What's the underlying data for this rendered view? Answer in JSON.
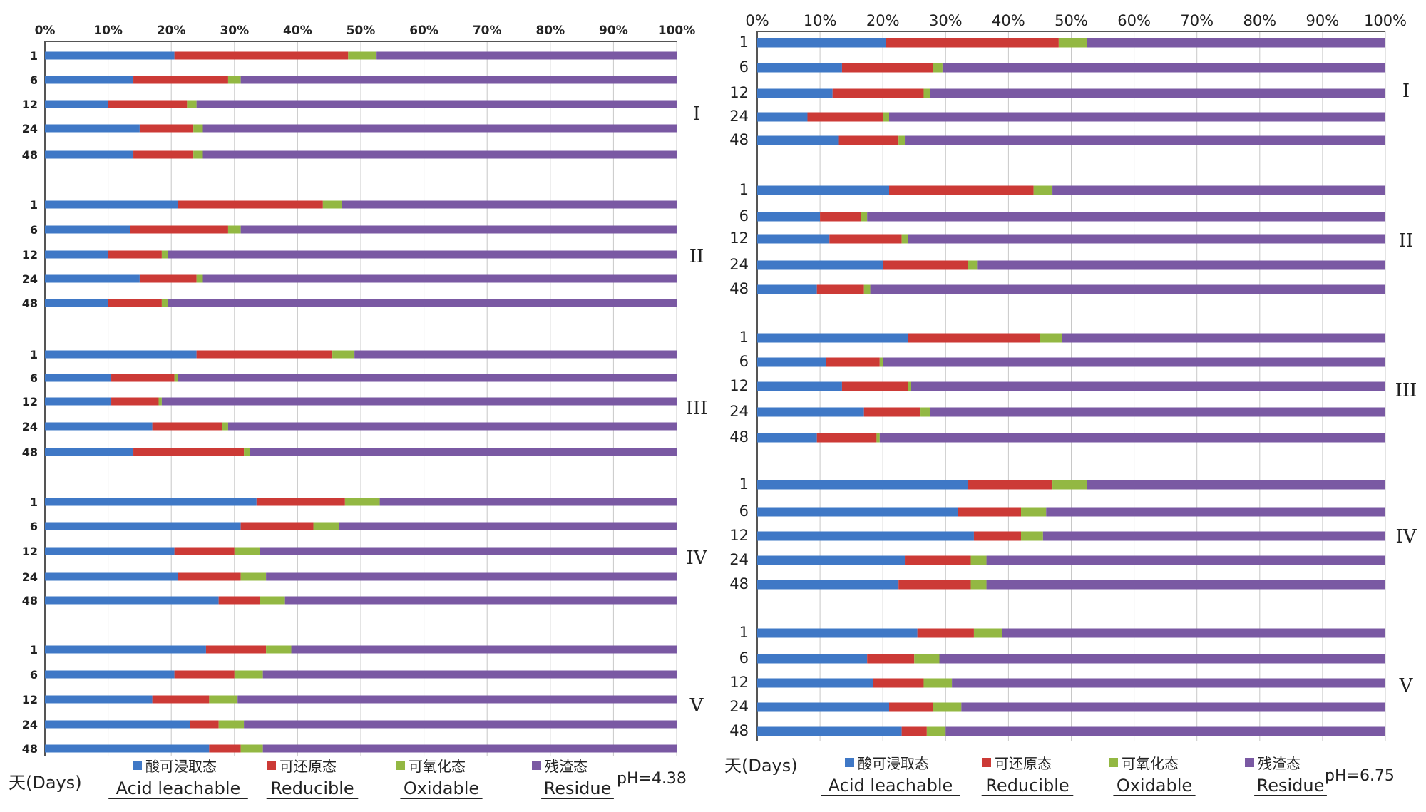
{
  "chart_data": [
    {
      "type": "bar",
      "orientation": "horizontal-stacked-100",
      "ph_label": "pH=4.38",
      "xlabel": "天(Days)",
      "xticks": [
        "0%",
        "10%",
        "20%",
        "30%",
        "40%",
        "50%",
        "60%",
        "70%",
        "80%",
        "90%",
        "100%"
      ],
      "group_labels": [
        "I",
        "II",
        "III",
        "IV",
        "V"
      ],
      "legend": [
        {
          "name_zh": "酸可浸取态",
          "name_en": "Acid leachable",
          "color": "#3f78c6"
        },
        {
          "name_zh": "可还原态",
          "name_en": "Reducible",
          "color": "#cc3a36"
        },
        {
          "name_zh": "可氧化态",
          "name_en": "Oxidable",
          "color": "#93b843"
        },
        {
          "name_zh": "残渣态",
          "name_en": "Residue",
          "color": "#7a59a3"
        }
      ],
      "groups": [
        {
          "label": "I",
          "rows": [
            {
              "day": "1",
              "values": [
                20.5,
                27.5,
                4.5,
                47.5
              ]
            },
            {
              "day": "6",
              "values": [
                14,
                15,
                2,
                69
              ]
            },
            {
              "day": "12",
              "values": [
                10,
                12.5,
                1.5,
                76
              ]
            },
            {
              "day": "24",
              "values": [
                15,
                8.5,
                1.5,
                75
              ]
            },
            {
              "day": "48",
              "values": [
                14,
                9.5,
                1.5,
                75
              ]
            }
          ]
        },
        {
          "label": "II",
          "rows": [
            {
              "day": "1",
              "values": [
                21,
                23,
                3,
                53
              ]
            },
            {
              "day": "6",
              "values": [
                13.5,
                15.5,
                2,
                69
              ]
            },
            {
              "day": "12",
              "values": [
                10,
                8.5,
                1,
                80.5
              ]
            },
            {
              "day": "24",
              "values": [
                15,
                9,
                1,
                75
              ]
            },
            {
              "day": "48",
              "values": [
                10,
                8.5,
                1,
                80.5
              ]
            }
          ]
        },
        {
          "label": "III",
          "rows": [
            {
              "day": "1",
              "values": [
                24,
                21.5,
                3.5,
                51
              ]
            },
            {
              "day": "6",
              "values": [
                10.5,
                10,
                0.5,
                79
              ]
            },
            {
              "day": "12",
              "values": [
                10.5,
                7.5,
                0.5,
                81.5
              ]
            },
            {
              "day": "24",
              "values": [
                17,
                11,
                1,
                71
              ]
            },
            {
              "day": "48",
              "values": [
                14,
                17.5,
                1,
                67.5
              ]
            }
          ]
        },
        {
          "label": "IV",
          "rows": [
            {
              "day": "1",
              "values": [
                33.5,
                14,
                5.5,
                47
              ]
            },
            {
              "day": "6",
              "values": [
                31,
                11.5,
                4,
                53.5
              ]
            },
            {
              "day": "12",
              "values": [
                20.5,
                9.5,
                4,
                66
              ]
            },
            {
              "day": "24",
              "values": [
                21,
                10,
                4,
                65
              ]
            },
            {
              "day": "48",
              "values": [
                27.5,
                6.5,
                4,
                62
              ]
            }
          ]
        },
        {
          "label": "V",
          "rows": [
            {
              "day": "1",
              "values": [
                25.5,
                9.5,
                4,
                61
              ]
            },
            {
              "day": "6",
              "values": [
                20.5,
                9.5,
                4.5,
                65.5
              ]
            },
            {
              "day": "12",
              "values": [
                17,
                9,
                4.5,
                69.5
              ]
            },
            {
              "day": "24",
              "values": [
                23,
                4.5,
                4,
                68.5
              ]
            },
            {
              "day": "48",
              "values": [
                26,
                5,
                3.5,
                65.5
              ]
            }
          ]
        }
      ]
    },
    {
      "type": "bar",
      "orientation": "horizontal-stacked-100",
      "ph_label": "pH=6.75",
      "xlabel": "天(Days)",
      "xticks": [
        "0%",
        "10%",
        "20%",
        "30%",
        "40%",
        "50%",
        "60%",
        "70%",
        "80%",
        "90%",
        "100%"
      ],
      "group_labels": [
        "I",
        "II",
        "III",
        "IV",
        "V"
      ],
      "legend": [
        {
          "name_zh": "酸可浸取态",
          "name_en": "Acid leachable",
          "color": "#3f78c6"
        },
        {
          "name_zh": "可还原态",
          "name_en": "Reducible",
          "color": "#cc3a36"
        },
        {
          "name_zh": "可氧化态",
          "name_en": "Oxidable",
          "color": "#93b843"
        },
        {
          "name_zh": "残渣态",
          "name_en": "Residue",
          "color": "#7a59a3"
        }
      ],
      "groups": [
        {
          "label": "I",
          "rows": [
            {
              "day": "1",
              "values": [
                20.5,
                27.5,
                4.5,
                47.5
              ]
            },
            {
              "day": "6",
              "values": [
                13.5,
                14.5,
                1.5,
                70.5
              ]
            },
            {
              "day": "12",
              "values": [
                12,
                14.5,
                1,
                72.5
              ]
            },
            {
              "day": "24",
              "values": [
                8,
                12,
                1,
                79
              ]
            },
            {
              "day": "48",
              "values": [
                13,
                9.5,
                1,
                76.5
              ]
            }
          ]
        },
        {
          "label": "II",
          "rows": [
            {
              "day": "1",
              "values": [
                21,
                23,
                3,
                53
              ]
            },
            {
              "day": "6",
              "values": [
                10,
                6.5,
                1,
                82.5
              ]
            },
            {
              "day": "12",
              "values": [
                11.5,
                11.5,
                1,
                76
              ]
            },
            {
              "day": "24",
              "values": [
                20,
                13.5,
                1.5,
                65
              ]
            },
            {
              "day": "48",
              "values": [
                9.5,
                7.5,
                1,
                82
              ]
            }
          ]
        },
        {
          "label": "III",
          "rows": [
            {
              "day": "1",
              "values": [
                24,
                21,
                3.5,
                51.5
              ]
            },
            {
              "day": "6",
              "values": [
                11,
                8.5,
                0.5,
                80
              ]
            },
            {
              "day": "12",
              "values": [
                13.5,
                10.5,
                0.5,
                75.5
              ]
            },
            {
              "day": "24",
              "values": [
                17,
                9,
                1.5,
                72.5
              ]
            },
            {
              "day": "48",
              "values": [
                9.5,
                9.5,
                0.5,
                80.5
              ]
            }
          ]
        },
        {
          "label": "IV",
          "rows": [
            {
              "day": "1",
              "values": [
                33.5,
                13.5,
                5.5,
                47.5
              ]
            },
            {
              "day": "6",
              "values": [
                32,
                10,
                4,
                54
              ]
            },
            {
              "day": "12",
              "values": [
                34.5,
                7.5,
                3.5,
                54.5
              ]
            },
            {
              "day": "24",
              "values": [
                23.5,
                10.5,
                2.5,
                63.5
              ]
            },
            {
              "day": "48",
              "values": [
                22.5,
                11.5,
                2.5,
                63.5
              ]
            }
          ]
        },
        {
          "label": "V",
          "rows": [
            {
              "day": "1",
              "values": [
                25.5,
                9,
                4.5,
                61
              ]
            },
            {
              "day": "6",
              "values": [
                17.5,
                7.5,
                4,
                71
              ]
            },
            {
              "day": "12",
              "values": [
                18.5,
                8,
                4.5,
                69
              ]
            },
            {
              "day": "24",
              "values": [
                21,
                7,
                4.5,
                67.5
              ]
            },
            {
              "day": "48",
              "values": [
                23,
                4,
                3,
                70
              ]
            }
          ]
        }
      ]
    }
  ]
}
